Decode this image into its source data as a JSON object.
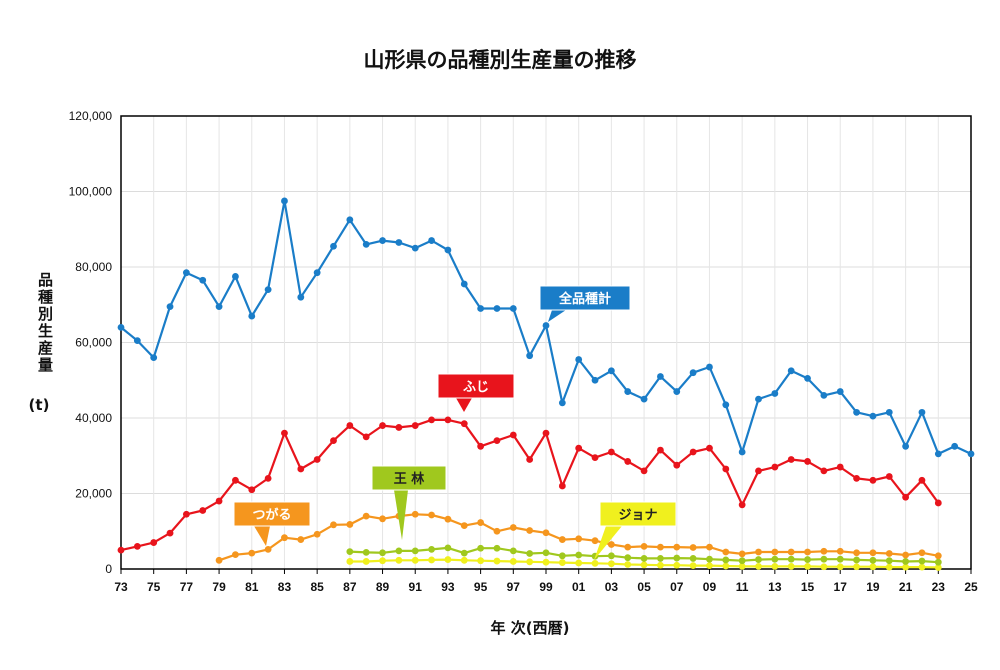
{
  "chart_data": {
    "type": "line",
    "title": "山形県の品種別生産量の推移",
    "ylabel": "品種別生産量",
    "yunit": "(t)",
    "xlabel": "年 次(西暦)",
    "ylim": [
      0,
      120000
    ],
    "yticks": [
      0,
      20000,
      40000,
      60000,
      80000,
      100000,
      120000
    ],
    "ytick_labels": [
      "0",
      "20,000",
      "40,000",
      "60,000",
      "80,000",
      "100,000",
      "120,000"
    ],
    "xlim": [
      1973,
      2025
    ],
    "xtick_years": [
      1973,
      1975,
      1977,
      1979,
      1981,
      1983,
      1985,
      1987,
      1989,
      1991,
      1993,
      1995,
      1997,
      1999,
      2001,
      2003,
      2005,
      2007,
      2009,
      2011,
      2013,
      2015,
      2017,
      2019,
      2021,
      2023,
      2025
    ],
    "xtick_labels": [
      "73",
      "75",
      "77",
      "79",
      "81",
      "83",
      "85",
      "87",
      "89",
      "91",
      "93",
      "95",
      "97",
      "99",
      "01",
      "03",
      "05",
      "07",
      "09",
      "11",
      "13",
      "15",
      "17",
      "19",
      "21",
      "23",
      "25"
    ],
    "grid": true,
    "series": [
      {
        "name": "全品種計",
        "color": "#1a7dc8",
        "x": [
          1973,
          1974,
          1975,
          1976,
          1977,
          1978,
          1979,
          1980,
          1981,
          1982,
          1983,
          1984,
          1985,
          1986,
          1987,
          1988,
          1989,
          1990,
          1991,
          1992,
          1993,
          1994,
          1995,
          1996,
          1997,
          1998,
          1999,
          2000,
          2001,
          2002,
          2003,
          2004,
          2005,
          2006,
          2007,
          2008,
          2009,
          2010,
          2011,
          2012,
          2013,
          2014,
          2015,
          2016,
          2017,
          2018,
          2019,
          2020,
          2021,
          2022,
          2023,
          2024,
          2025
        ],
        "y": [
          64000,
          60500,
          56000,
          69500,
          78500,
          76500,
          69500,
          77500,
          67000,
          74000,
          97500,
          72000,
          78500,
          85500,
          92500,
          86000,
          87000,
          86500,
          85000,
          87000,
          84500,
          75500,
          69000,
          69000,
          69000,
          56500,
          64500,
          44000,
          55500,
          50000,
          52500,
          47000,
          45000,
          51000,
          47000,
          52000,
          53500,
          43500,
          31000,
          45000,
          46500,
          52500,
          50500,
          46000,
          47000,
          41500,
          40500,
          41500,
          32500,
          41500,
          30500,
          32500,
          30500
        ]
      },
      {
        "name": "ふじ",
        "color": "#e8141c",
        "x": [
          1973,
          1974,
          1975,
          1976,
          1977,
          1978,
          1979,
          1980,
          1981,
          1982,
          1983,
          1984,
          1985,
          1986,
          1987,
          1988,
          1989,
          1990,
          1991,
          1992,
          1993,
          1994,
          1995,
          1996,
          1997,
          1998,
          1999,
          2000,
          2001,
          2002,
          2003,
          2004,
          2005,
          2006,
          2007,
          2008,
          2009,
          2010,
          2011,
          2012,
          2013,
          2014,
          2015,
          2016,
          2017,
          2018,
          2019,
          2020,
          2021,
          2022,
          2023
        ],
        "y": [
          5000,
          6000,
          7000,
          9500,
          14500,
          15500,
          18000,
          23500,
          21000,
          24000,
          36000,
          26500,
          29000,
          34000,
          38000,
          35000,
          38000,
          37500,
          38000,
          39500,
          39500,
          38500,
          32500,
          34000,
          35500,
          29000,
          36000,
          22000,
          32000,
          29500,
          31000,
          28500,
          26000,
          31500,
          27500,
          31000,
          32000,
          26500,
          17000,
          26000,
          27000,
          29000,
          28500,
          26000,
          27000,
          24000,
          23500,
          24500,
          19000,
          23500,
          17500
        ]
      },
      {
        "name": "つがる",
        "color": "#f5961e",
        "x": [
          1979,
          1980,
          1981,
          1982,
          1983,
          1984,
          1985,
          1986,
          1987,
          1988,
          1989,
          1990,
          1991,
          1992,
          1993,
          1994,
          1995,
          1996,
          1997,
          1998,
          1999,
          2000,
          2001,
          2002,
          2003,
          2004,
          2005,
          2006,
          2007,
          2008,
          2009,
          2010,
          2011,
          2012,
          2013,
          2014,
          2015,
          2016,
          2017,
          2018,
          2019,
          2020,
          2021,
          2022,
          2023
        ],
        "y": [
          2300,
          3800,
          4200,
          5200,
          8300,
          7800,
          9200,
          11700,
          11800,
          14000,
          13300,
          14000,
          14500,
          14300,
          13200,
          11500,
          12300,
          10000,
          11000,
          10200,
          9600,
          7800,
          8000,
          7500,
          6500,
          5800,
          6000,
          5800,
          5800,
          5700,
          5800,
          4500,
          4000,
          4500,
          4500,
          4500,
          4500,
          4700,
          4700,
          4300,
          4300,
          4100,
          3700,
          4300,
          3500
        ]
      },
      {
        "name": "王 林",
        "color": "#a0c81e",
        "x": [
          1987,
          1988,
          1989,
          1990,
          1991,
          1992,
          1993,
          1994,
          1995,
          1996,
          1997,
          1998,
          1999,
          2000,
          2001,
          2002,
          2003,
          2004,
          2005,
          2006,
          2007,
          2008,
          2009,
          2010,
          2011,
          2012,
          2013,
          2014,
          2015,
          2016,
          2017,
          2018,
          2019,
          2020,
          2021,
          2022,
          2023
        ],
        "y": [
          4600,
          4400,
          4300,
          4800,
          4800,
          5200,
          5600,
          4200,
          5500,
          5500,
          4800,
          4100,
          4300,
          3500,
          3700,
          3400,
          3500,
          3000,
          2800,
          2800,
          2900,
          2800,
          2600,
          2400,
          2200,
          2500,
          2600,
          2600,
          2500,
          2600,
          2600,
          2400,
          2300,
          2200,
          2000,
          2100,
          1800
        ]
      },
      {
        "name": "ジョナ",
        "color": "#f0f01e",
        "x": [
          1987,
          1988,
          1989,
          1990,
          1991,
          1992,
          1993,
          1994,
          1995,
          1996,
          1997,
          1998,
          1999,
          2000,
          2001,
          2002,
          2003,
          2004,
          2005,
          2006,
          2007,
          2008,
          2009,
          2010,
          2011,
          2012,
          2013,
          2014,
          2015,
          2016,
          2017,
          2018,
          2019,
          2020,
          2021,
          2022,
          2023
        ],
        "y": [
          2000,
          2000,
          2200,
          2300,
          2300,
          2400,
          2500,
          2300,
          2200,
          2100,
          2000,
          1900,
          1800,
          1700,
          1600,
          1500,
          1400,
          1200,
          1100,
          1000,
          1000,
          900,
          900,
          800,
          700,
          700,
          700,
          700,
          700,
          600,
          600,
          600,
          600,
          500,
          500,
          500,
          400
        ]
      }
    ],
    "annotations": [
      {
        "text": "全品種計",
        "series": "全品種計"
      },
      {
        "text": "ふじ",
        "series": "ふじ"
      },
      {
        "text": "つがる",
        "series": "つがる"
      },
      {
        "text": "王 林",
        "series": "王 林"
      },
      {
        "text": "ジョナ",
        "series": "ジョナ"
      }
    ]
  }
}
